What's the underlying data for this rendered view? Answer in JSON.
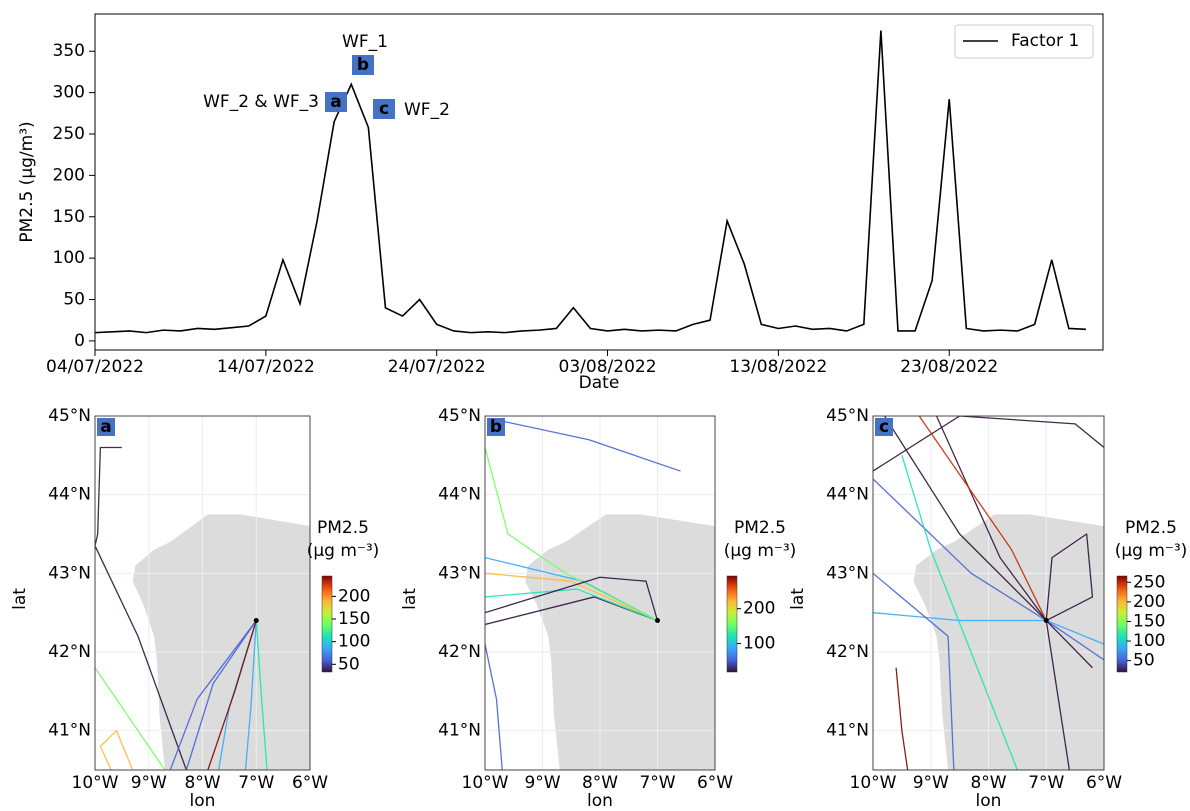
{
  "chart_data": [
    {
      "type": "line",
      "ylabel": "PM2.5 (μg/m³)",
      "xlabel": "Date",
      "x": [
        "04/07/2022",
        "05/07/2022",
        "06/07/2022",
        "07/07/2022",
        "08/07/2022",
        "09/07/2022",
        "10/07/2022",
        "11/07/2022",
        "12/07/2022",
        "13/07/2022",
        "14/07/2022",
        "15/07/2022",
        "16/07/2022",
        "17/07/2022",
        "18/07/2022",
        "19/07/2022",
        "20/07/2022",
        "21/07/2022",
        "22/07/2022",
        "23/07/2022",
        "24/07/2022",
        "25/07/2022",
        "26/07/2022",
        "27/07/2022",
        "28/07/2022",
        "29/07/2022",
        "30/07/2022",
        "31/07/2022",
        "01/08/2022",
        "02/08/2022",
        "03/08/2022",
        "04/08/2022",
        "05/08/2022",
        "06/08/2022",
        "07/08/2022",
        "08/08/2022",
        "09/08/2022",
        "10/08/2022",
        "11/08/2022",
        "12/08/2022",
        "13/08/2022",
        "14/08/2022",
        "15/08/2022",
        "16/08/2022",
        "17/08/2022",
        "18/08/2022",
        "19/08/2022",
        "20/08/2022",
        "21/08/2022",
        "22/08/2022",
        "23/08/2022",
        "24/08/2022",
        "25/08/2022",
        "26/08/2022",
        "27/08/2022",
        "28/08/2022",
        "29/08/2022",
        "30/08/2022",
        "31/08/2022"
      ],
      "series": [
        {
          "name": "Factor 1",
          "color": "#000000",
          "values": [
            10,
            11,
            12,
            10,
            13,
            12,
            15,
            14,
            16,
            18,
            30,
            98,
            45,
            145,
            265,
            310,
            258,
            40,
            30,
            50,
            20,
            12,
            10,
            11,
            10,
            12,
            13,
            15,
            40,
            15,
            12,
            14,
            12,
            13,
            12,
            20,
            25,
            145,
            93,
            20,
            15,
            18,
            14,
            15,
            12,
            20,
            375,
            12,
            12,
            73,
            292,
            15,
            12,
            13,
            12,
            20,
            98,
            15,
            14
          ]
        }
      ],
      "xlim": [
        "04/07/2022",
        "01/09/2022"
      ],
      "xticks": [
        "04/07/2022",
        "14/07/2022",
        "24/07/2022",
        "03/08/2022",
        "13/08/2022",
        "23/08/2022"
      ],
      "ylim": [
        -11,
        395
      ],
      "yticks": [
        0,
        50,
        100,
        150,
        200,
        250,
        300,
        350
      ],
      "legend": "upper right",
      "annotations": [
        "WF_1",
        "WF_2 & WF_3",
        "WF_2"
      ],
      "markers": [
        "a",
        "b",
        "c"
      ],
      "annotation_color": "#d0641c",
      "marker_color": "#4472c4"
    },
    {
      "type": "map",
      "panel": "a",
      "xlabel": "lon",
      "ylabel": "lat",
      "xlim": [
        -10,
        -6
      ],
      "ylim": [
        40.5,
        45
      ],
      "xticks": [
        {
          "value": -10,
          "label": "10°W"
        },
        {
          "value": -9,
          "label": "9°W"
        },
        {
          "value": -8,
          "label": "8°W"
        },
        {
          "value": -7,
          "label": "7°W"
        },
        {
          "value": -6,
          "label": "6°W"
        }
      ],
      "yticks": [
        {
          "value": 41,
          "label": "41°N"
        },
        {
          "value": 42,
          "label": "42°N"
        },
        {
          "value": 43,
          "label": "43°N"
        },
        {
          "value": 44,
          "label": "44°N"
        },
        {
          "value": 45,
          "label": "45°N"
        }
      ],
      "colorbar": {
        "title": "PM2.5",
        "unit": "(μg m⁻³)",
        "lim": [
          33,
          245
        ],
        "ticks": [
          50,
          100,
          150,
          200
        ]
      }
    },
    {
      "type": "map",
      "panel": "b",
      "xlabel": "lon",
      "ylabel": "lat",
      "xlim": [
        -10,
        -6
      ],
      "ylim": [
        40.5,
        45
      ],
      "xticks": [
        {
          "value": -10,
          "label": "10°W"
        },
        {
          "value": -9,
          "label": "9°W"
        },
        {
          "value": -8,
          "label": "8°W"
        },
        {
          "value": -7,
          "label": "7°W"
        },
        {
          "value": -6,
          "label": "6°W"
        }
      ],
      "yticks": [
        {
          "value": 41,
          "label": "41°N"
        },
        {
          "value": 42,
          "label": "42°N"
        },
        {
          "value": 43,
          "label": "43°N"
        },
        {
          "value": 44,
          "label": "44°N"
        },
        {
          "value": 45,
          "label": "45°N"
        }
      ],
      "colorbar": {
        "title": "PM2.5",
        "unit": "(μg m⁻³)",
        "lim": [
          18,
          294
        ],
        "ticks": [
          100,
          200
        ]
      }
    },
    {
      "type": "map",
      "panel": "c",
      "xlabel": "lon",
      "ylabel": "lat",
      "xlim": [
        -10,
        -6
      ],
      "ylim": [
        40.5,
        45
      ],
      "xticks": [
        {
          "value": -10,
          "label": "10°W"
        },
        {
          "value": -9,
          "label": "9°W"
        },
        {
          "value": -8,
          "label": "8°W"
        },
        {
          "value": -7,
          "label": "7°W"
        },
        {
          "value": -6,
          "label": "6°W"
        }
      ],
      "yticks": [
        {
          "value": 41,
          "label": "41°N"
        },
        {
          "value": 42,
          "label": "42°N"
        },
        {
          "value": 43,
          "label": "43°N"
        },
        {
          "value": 44,
          "label": "44°N"
        },
        {
          "value": 45,
          "label": "45°N"
        }
      ],
      "colorbar": {
        "title": "PM2.5",
        "unit": "(μg m⁻³)",
        "lim": [
          21,
          266
        ],
        "ticks": [
          50,
          100,
          150,
          200,
          250
        ]
      }
    }
  ]
}
